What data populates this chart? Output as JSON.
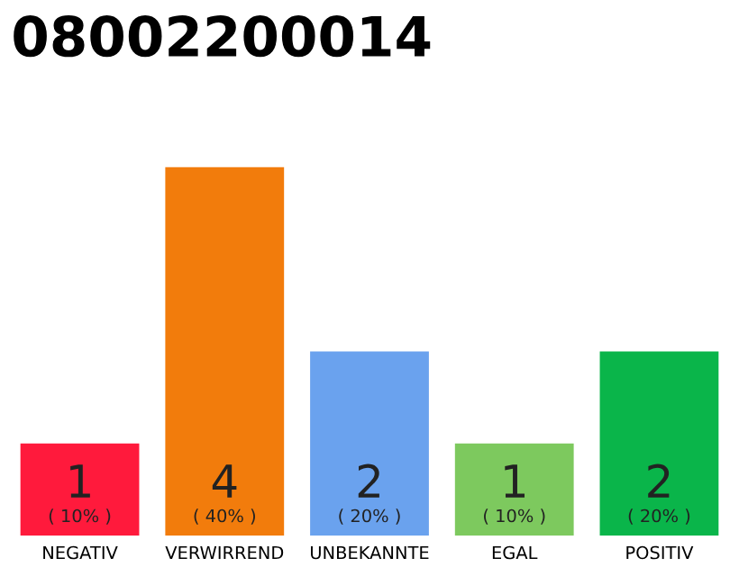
{
  "chart_data": {
    "type": "bar",
    "title": "08002200014",
    "categories": [
      "NEGATIV",
      "VERWIRREND",
      "UNBEKANNTE",
      "EGAL",
      "POSITIV"
    ],
    "values": [
      1,
      4,
      2,
      1,
      2
    ],
    "colors": [
      "#ff1a3c",
      "#f27c0c",
      "#6aa2ee",
      "#7dc95e",
      "#0ab54a"
    ],
    "value_labels": [
      "1\n( 10% )",
      "4\n( 40% )",
      "2\n( 20% )",
      "1\n( 10% )",
      "2\n( 20% )"
    ],
    "ylim": [
      0,
      4
    ],
    "grid": false,
    "legend": false
  }
}
